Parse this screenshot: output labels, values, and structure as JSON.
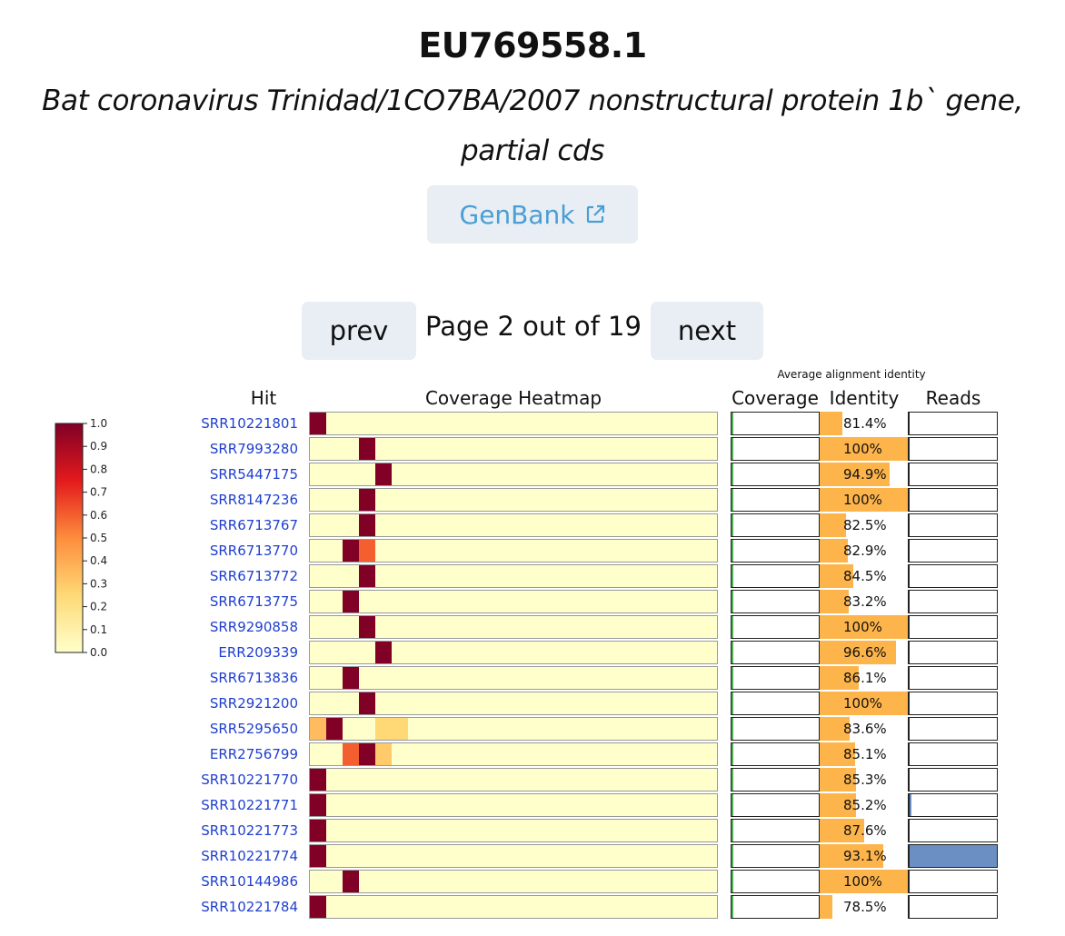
{
  "header": {
    "accession": "EU769558.1",
    "description": "Bat coronavirus Trinidad/1CO7BA/2007 nonstructural protein 1b` gene, partial cds",
    "genbank_label": "GenBank"
  },
  "pagination": {
    "prev_label": "prev",
    "next_label": "next",
    "page_text": "Page 2 out of 19"
  },
  "chart_data": {
    "type": "heatmap",
    "title": "",
    "column_headers": {
      "hit": "Hit",
      "heatmap": "Coverage Heatmap",
      "coverage": "Coverage",
      "identity": "Identity",
      "reads": "Reads",
      "identity_group": "Average alignment identity"
    },
    "colorbar": {
      "min": 0.0,
      "max": 1.0,
      "ticks": [
        "0.0",
        "0.1",
        "0.2",
        "0.3",
        "0.4",
        "0.5",
        "0.6",
        "0.7",
        "0.8",
        "0.9",
        "1.0"
      ]
    },
    "bins": 25,
    "colors": {
      "low": "#ffffcc",
      "mid_low": "#fed976",
      "mid": "#fd8d3c",
      "high": "#800026",
      "identity_bar": "#fdb44b",
      "reads_bar": "#6b8fc2",
      "coverage_bar": "#4caf50",
      "link": "#1f3fd0"
    },
    "rows": [
      {
        "hit": "SRR10221801",
        "cells": [
          [
            0,
            1.0
          ]
        ],
        "identity": 81.4,
        "identity_label": "81.4%",
        "reads": 0.0
      },
      {
        "hit": "SRR7993280",
        "cells": [
          [
            3,
            1.0
          ]
        ],
        "identity": 100,
        "identity_label": "100%",
        "reads": 0.0
      },
      {
        "hit": "SRR5447175",
        "cells": [
          [
            4,
            1.0
          ]
        ],
        "identity": 94.9,
        "identity_label": "94.9%",
        "reads": 0.0
      },
      {
        "hit": "SRR8147236",
        "cells": [
          [
            3,
            1.0
          ]
        ],
        "identity": 100,
        "identity_label": "100%",
        "reads": 0.0
      },
      {
        "hit": "SRR6713767",
        "cells": [
          [
            3,
            1.0
          ]
        ],
        "identity": 82.5,
        "identity_label": "82.5%",
        "reads": 0.0
      },
      {
        "hit": "SRR6713770",
        "cells": [
          [
            2,
            1.0
          ],
          [
            3,
            0.6
          ]
        ],
        "identity": 82.9,
        "identity_label": "82.9%",
        "reads": 0.0
      },
      {
        "hit": "SRR6713772",
        "cells": [
          [
            3,
            1.0
          ]
        ],
        "identity": 84.5,
        "identity_label": "84.5%",
        "reads": 0.0
      },
      {
        "hit": "SRR6713775",
        "cells": [
          [
            2,
            1.0
          ]
        ],
        "identity": 83.2,
        "identity_label": "83.2%",
        "reads": 0.0
      },
      {
        "hit": "SRR9290858",
        "cells": [
          [
            3,
            1.0
          ]
        ],
        "identity": 100,
        "identity_label": "100%",
        "reads": 0.0
      },
      {
        "hit": "ERR209339",
        "cells": [
          [
            4,
            1.0
          ]
        ],
        "identity": 96.6,
        "identity_label": "96.6%",
        "reads": 0.0
      },
      {
        "hit": "SRR6713836",
        "cells": [
          [
            2,
            1.0
          ]
        ],
        "identity": 86.1,
        "identity_label": "86.1%",
        "reads": 0.0
      },
      {
        "hit": "SRR2921200",
        "cells": [
          [
            3,
            1.0
          ]
        ],
        "identity": 100,
        "identity_label": "100%",
        "reads": 0.0
      },
      {
        "hit": "SRR5295650",
        "cells": [
          [
            0,
            0.35
          ],
          [
            1,
            1.0
          ],
          [
            4,
            0.25
          ],
          [
            5,
            0.25
          ]
        ],
        "identity": 83.6,
        "identity_label": "83.6%",
        "reads": 0.0
      },
      {
        "hit": "ERR2756799",
        "cells": [
          [
            2,
            0.6
          ],
          [
            3,
            1.0
          ],
          [
            4,
            0.3
          ]
        ],
        "identity": 85.1,
        "identity_label": "85.1%",
        "reads": 0.0
      },
      {
        "hit": "SRR10221770",
        "cells": [
          [
            0,
            1.0
          ]
        ],
        "identity": 85.3,
        "identity_label": "85.3%",
        "reads": 0.0
      },
      {
        "hit": "SRR10221771",
        "cells": [
          [
            0,
            1.0
          ]
        ],
        "identity": 85.2,
        "identity_label": "85.2%",
        "reads": 0.02
      },
      {
        "hit": "SRR10221773",
        "cells": [
          [
            0,
            1.0
          ]
        ],
        "identity": 87.6,
        "identity_label": "87.6%",
        "reads": 0.0
      },
      {
        "hit": "SRR10221774",
        "cells": [
          [
            0,
            1.0
          ]
        ],
        "identity": 93.1,
        "identity_label": "93.1%",
        "reads": 1.0
      },
      {
        "hit": "SRR10144986",
        "cells": [
          [
            2,
            1.0
          ]
        ],
        "identity": 100,
        "identity_label": "100%",
        "reads": 0.0
      },
      {
        "hit": "SRR10221784",
        "cells": [
          [
            0,
            1.0
          ]
        ],
        "identity": 78.5,
        "identity_label": "78.5%",
        "reads": 0.0
      }
    ],
    "identity_range": [
      75,
      100
    ],
    "coverage_value": 0.01
  }
}
